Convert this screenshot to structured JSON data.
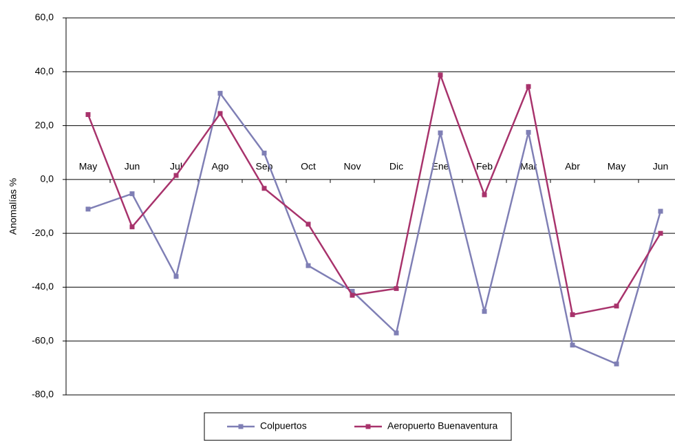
{
  "chart_data": {
    "type": "line",
    "y_label": "Anomalías %",
    "categories": [
      "May",
      "Jun",
      "Jul",
      "Ago",
      "Sep",
      "Oct",
      "Nov",
      "Dic",
      "Ene",
      "Feb",
      "Mar",
      "Abr",
      "May",
      "Jun"
    ],
    "series": [
      {
        "name": "Colpuertos",
        "color": "#7f7fb5",
        "values": [
          -11,
          -5.3,
          -36,
          32,
          9.8,
          -32,
          -41.5,
          -57,
          17.3,
          -49,
          17.5,
          -61.5,
          -68.5,
          -11.8
        ]
      },
      {
        "name": "Aeropuerto Buenaventura",
        "color": "#a8336c",
        "values": [
          24.1,
          -17.6,
          1.5,
          24.5,
          -3.3,
          -16.6,
          -43,
          -40.5,
          38.8,
          -5.7,
          34.5,
          -50.2,
          -47,
          -20
        ]
      }
    ],
    "ylim": [
      -80,
      60
    ],
    "yticks": [
      {
        "value": -80,
        "label": "-80,0"
      },
      {
        "value": -60,
        "label": "-60,0"
      },
      {
        "value": -40,
        "label": "-40,0"
      },
      {
        "value": -20,
        "label": "-20,0"
      },
      {
        "value": 0,
        "label": "0,0"
      },
      {
        "value": 20,
        "label": "20,0"
      },
      {
        "value": 40,
        "label": "40,0"
      },
      {
        "value": 60,
        "label": "60,0"
      }
    ],
    "grid": true,
    "legend": "bottom"
  }
}
